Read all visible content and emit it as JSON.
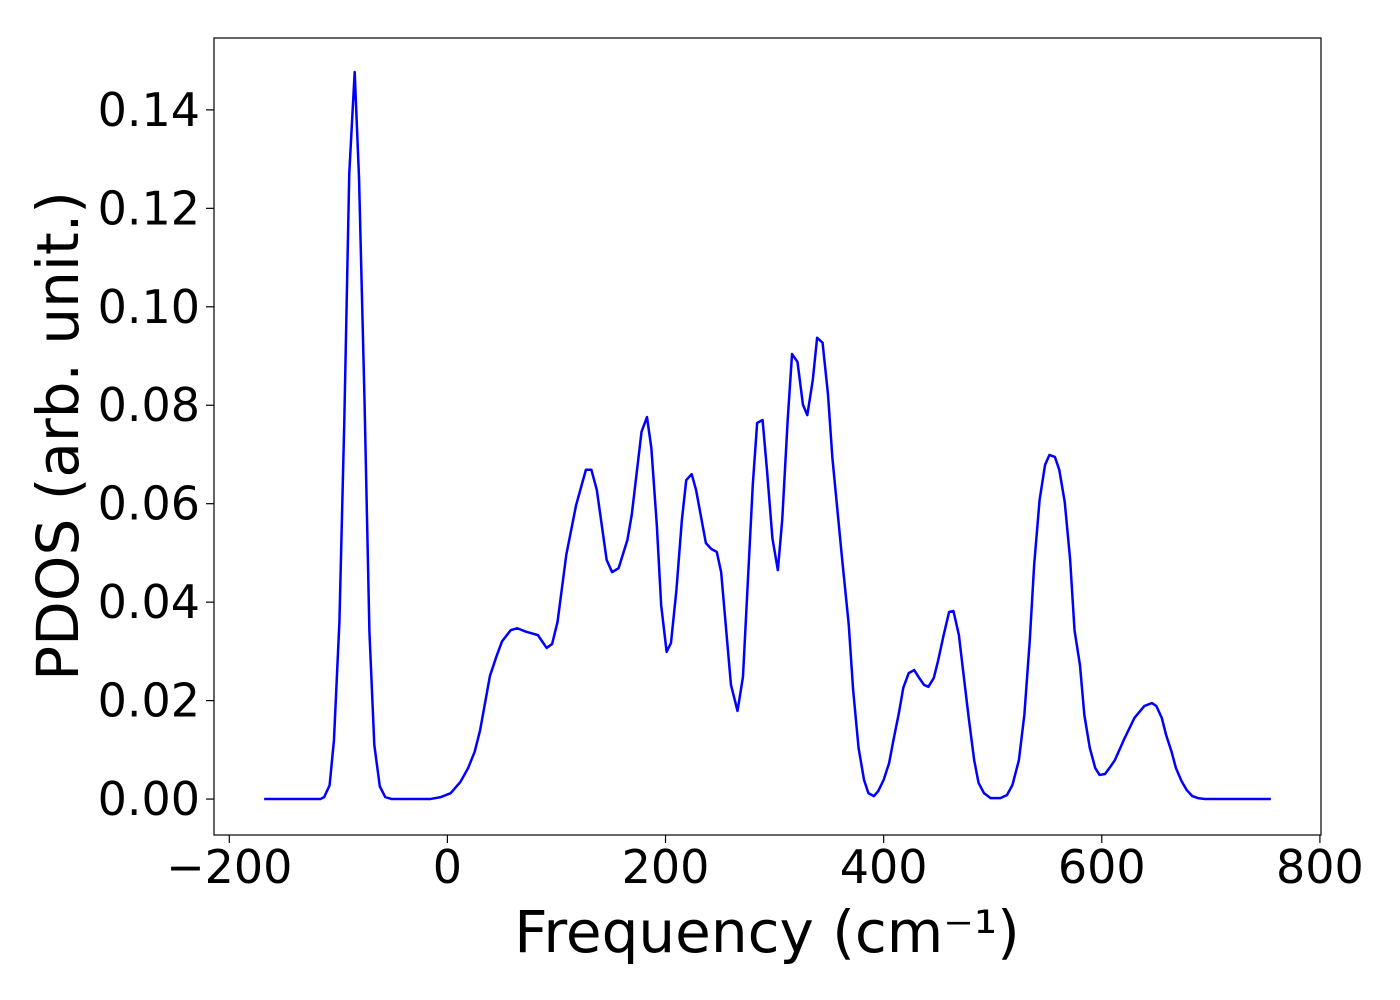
{
  "chart_data": {
    "type": "line",
    "x_label": "Frequency (cm⁻¹)",
    "y_label": "PDOS (arb. unit.)",
    "xlim": [
      -214,
      801
    ],
    "ylim": [
      -0.0073,
      0.1546
    ],
    "xticks": [
      {
        "value": -200,
        "label": "−200"
      },
      0,
      200,
      400,
      600,
      800
    ],
    "yticks": [
      {
        "value": 0,
        "label": "0.00"
      },
      {
        "value": 0.02,
        "label": "0.02"
      },
      {
        "value": 0.04,
        "label": "0.04"
      },
      {
        "value": 0.06,
        "label": "0.06"
      },
      {
        "value": 0.08,
        "label": "0.08"
      },
      {
        "value": 0.1,
        "label": "0.10"
      },
      {
        "value": 0.12,
        "label": "0.12"
      },
      {
        "value": 0.14,
        "label": "0.14"
      }
    ],
    "grid": false,
    "series": [
      {
        "color": "#0000ff",
        "x": [
          -168,
          -116.5,
          -113,
          -108,
          -104,
          -99,
          -94.5,
          -90,
          -85,
          -81,
          -76,
          -71.5,
          -67,
          -62,
          -57,
          -51,
          -16,
          -6,
          3,
          12,
          19,
          25,
          30,
          39,
          45,
          50,
          58,
          64,
          72,
          83,
          91,
          96,
          101,
          109,
          118,
          127,
          132,
          137,
          146,
          151,
          157,
          165,
          169,
          178,
          183,
          187,
          192,
          196,
          201,
          205,
          210,
          215,
          219,
          224,
          228,
          237,
          242,
          247,
          251,
          260,
          266,
          271,
          280,
          284,
          289,
          293,
          298,
          303,
          307,
          312,
          316,
          321,
          326,
          330,
          335,
          339,
          344,
          349,
          353,
          362,
          368,
          372,
          377,
          382,
          386,
          391,
          395,
          400,
          405,
          409,
          414,
          418,
          423,
          428,
          432,
          437,
          441,
          446,
          450,
          455,
          460,
          464,
          469,
          473,
          478,
          483,
          487,
          492,
          498,
          507,
          513,
          518,
          524,
          529,
          534,
          538,
          543,
          548,
          552,
          557,
          561,
          566,
          571,
          575,
          580,
          584,
          589,
          594,
          598,
          603,
          607,
          612,
          621,
          630,
          639,
          646,
          650,
          655,
          659,
          664,
          668,
          673,
          678,
          683,
          688,
          695,
          755
        ],
        "values": [
          0,
          0,
          0.0004,
          0.0028,
          0.012,
          0.036,
          0.077,
          0.127,
          0.1477,
          0.126,
          0.081,
          0.034,
          0.011,
          0.0026,
          0.0004,
          0,
          0,
          0.0004,
          0.0012,
          0.0035,
          0.0063,
          0.0096,
          0.014,
          0.025,
          0.029,
          0.032,
          0.0343,
          0.0347,
          0.034,
          0.0333,
          0.0307,
          0.0315,
          0.036,
          0.0496,
          0.0597,
          0.0669,
          0.0669,
          0.0628,
          0.0486,
          0.0461,
          0.0469,
          0.0526,
          0.0577,
          0.0746,
          0.0776,
          0.0713,
          0.0557,
          0.0394,
          0.0299,
          0.0317,
          0.0425,
          0.0567,
          0.0648,
          0.066,
          0.0628,
          0.052,
          0.0508,
          0.0502,
          0.0461,
          0.0232,
          0.0179,
          0.0248,
          0.0638,
          0.0764,
          0.077,
          0.0669,
          0.053,
          0.0465,
          0.0567,
          0.077,
          0.0904,
          0.0888,
          0.0801,
          0.078,
          0.0851,
          0.0937,
          0.0927,
          0.0821,
          0.0693,
          0.0486,
          0.0354,
          0.0222,
          0.0104,
          0.0039,
          0.0012,
          0.0006,
          0.0016,
          0.0039,
          0.0073,
          0.012,
          0.0175,
          0.0226,
          0.0256,
          0.0262,
          0.0248,
          0.0232,
          0.0228,
          0.0246,
          0.0282,
          0.0333,
          0.038,
          0.0382,
          0.0333,
          0.0258,
          0.0165,
          0.0079,
          0.0033,
          0.0012,
          0.0002,
          0.0002,
          0.0008,
          0.0028,
          0.0079,
          0.0171,
          0.0323,
          0.0476,
          0.0608,
          0.0679,
          0.0699,
          0.0695,
          0.0669,
          0.0604,
          0.0486,
          0.0343,
          0.0272,
          0.0171,
          0.0104,
          0.0063,
          0.0049,
          0.0051,
          0.0063,
          0.0079,
          0.0124,
          0.0165,
          0.0189,
          0.0195,
          0.0189,
          0.0165,
          0.013,
          0.0096,
          0.0063,
          0.0037,
          0.0018,
          0.0006,
          0.0002,
          0,
          0
        ]
      }
    ]
  }
}
